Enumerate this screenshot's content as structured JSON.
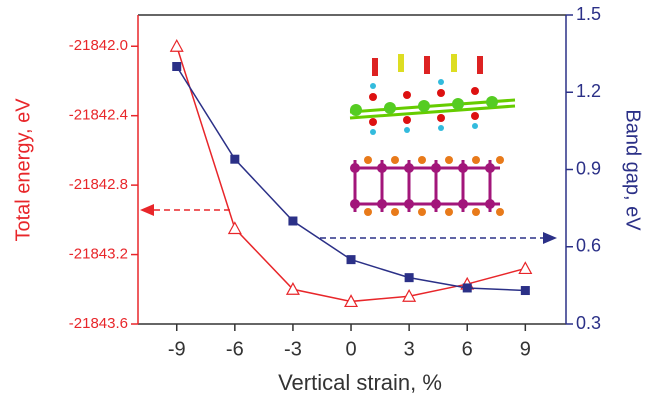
{
  "chart_data": {
    "type": "line",
    "x_label": "Vertical strain, %",
    "y_label": "Total energy, eV",
    "y2_label": "Band gap, eV",
    "x": [
      -9,
      -6,
      -3,
      0,
      3,
      6,
      9
    ],
    "xlim": [
      -11,
      11.1
    ],
    "xticks": [
      -9,
      -6,
      -3,
      0,
      3,
      6,
      9
    ],
    "ylim": [
      -21843.6,
      -21841.82
    ],
    "yticks": [
      {
        "value": -21842,
        "label": "-21842.0"
      },
      -21842.4,
      -21842.8,
      -21843.2,
      -21843.6
    ],
    "y2lim": [
      0.3,
      1.5
    ],
    "y2ticks": [
      0.3,
      0.6,
      0.9,
      1.2,
      1.5
    ],
    "series": [
      {
        "color": "#e8262a",
        "marker": "triangle",
        "values": [
          -21842.0,
          -21843.05,
          -21843.4,
          -21843.47,
          -21843.44,
          -21843.37,
          -21843.28
        ]
      },
      {
        "color": "#2b3087",
        "marker": "square",
        "axis": "y2",
        "values": [
          1.3,
          0.94,
          0.7,
          0.55,
          0.48,
          0.44,
          0.43
        ]
      }
    ]
  }
}
